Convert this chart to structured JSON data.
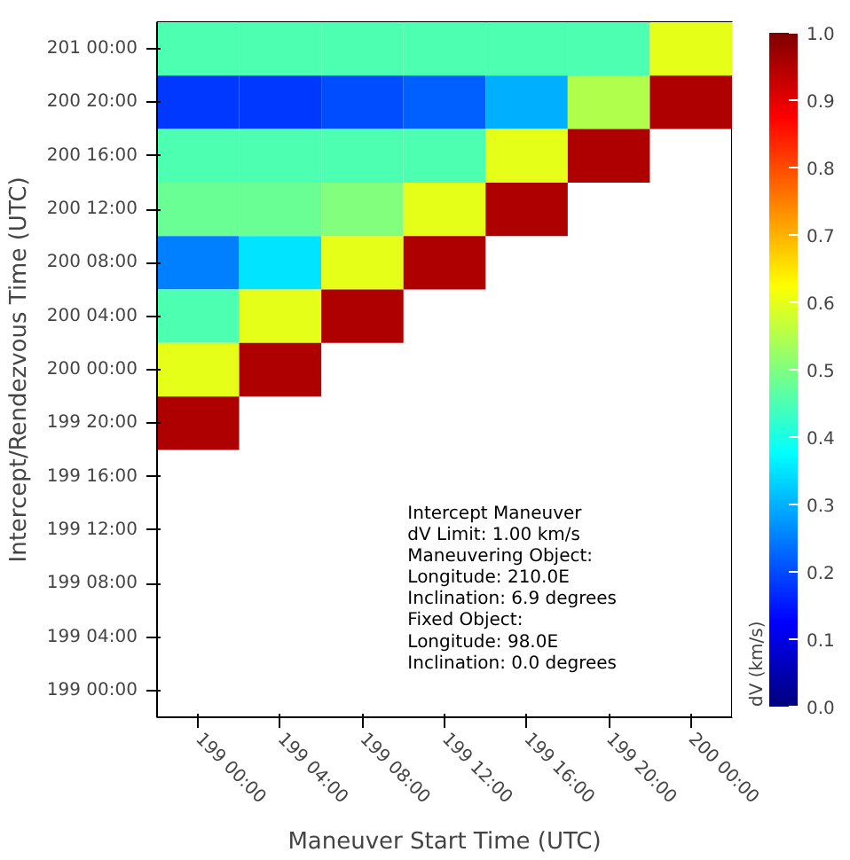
{
  "chart_data": {
    "type": "heatmap",
    "xlabel": "Maneuver Start Time (UTC)",
    "ylabel": "Intercept/Rendezvous Time (UTC)",
    "clabel": "dV (km/s)",
    "categories": [
      "199 00:00",
      "199 04:00",
      "199 08:00",
      "199 12:00",
      "199 16:00",
      "199 20:00",
      "200 00:00"
    ],
    "y_categories": [
      "201 00:00",
      "200 20:00",
      "200 16:00",
      "200 12:00",
      "200 08:00",
      "200 04:00",
      "200 00:00",
      "199 20:00",
      "199 16:00",
      "199 12:00",
      "199 08:00",
      "199 04:00",
      "199 00:00"
    ],
    "cells": [
      [
        0.45,
        0.45,
        0.45,
        0.45,
        0.45,
        0.45,
        0.6
      ],
      [
        0.18,
        0.18,
        0.2,
        0.22,
        0.3,
        0.55,
        0.95
      ],
      [
        0.45,
        0.45,
        0.45,
        0.45,
        0.6,
        0.95,
        null
      ],
      [
        0.48,
        0.48,
        0.5,
        0.6,
        0.95,
        null,
        null
      ],
      [
        0.25,
        0.35,
        0.6,
        0.95,
        null,
        null,
        null
      ],
      [
        0.45,
        0.6,
        0.95,
        null,
        null,
        null,
        null
      ],
      [
        0.6,
        0.95,
        null,
        null,
        null,
        null,
        null
      ],
      [
        0.95,
        null,
        null,
        null,
        null,
        null,
        null
      ],
      [
        null,
        null,
        null,
        null,
        null,
        null,
        null
      ],
      [
        null,
        null,
        null,
        null,
        null,
        null,
        null
      ],
      [
        null,
        null,
        null,
        null,
        null,
        null,
        null
      ],
      [
        null,
        null,
        null,
        null,
        null,
        null,
        null
      ],
      [
        null,
        null,
        null,
        null,
        null,
        null,
        null
      ]
    ],
    "clim": [
      0,
      1
    ],
    "cticks": [
      {
        "value": 0,
        "label": "0.0"
      },
      {
        "value": 0.1,
        "label": "0.1"
      },
      {
        "value": 0.2,
        "label": "0.2"
      },
      {
        "value": 0.3,
        "label": "0.3"
      },
      {
        "value": 0.4,
        "label": "0.4"
      },
      {
        "value": 0.5,
        "label": "0.5"
      },
      {
        "value": 0.6,
        "label": "0.6"
      },
      {
        "value": 0.7,
        "label": "0.7"
      },
      {
        "value": 0.8,
        "label": "0.8"
      },
      {
        "value": 0.9,
        "label": "0.9"
      },
      {
        "value": 1.0,
        "label": "1.0"
      }
    ],
    "annotations": [
      "Intercept Maneuver",
      "dV Limit: 1.00 km/s",
      "Maneuvering Object:",
      "Longitude: 210.0E",
      "Inclination: 6.9 degrees",
      "Fixed Object:",
      "Longitude: 98.0E",
      "Inclination: 0.0 degrees"
    ]
  }
}
